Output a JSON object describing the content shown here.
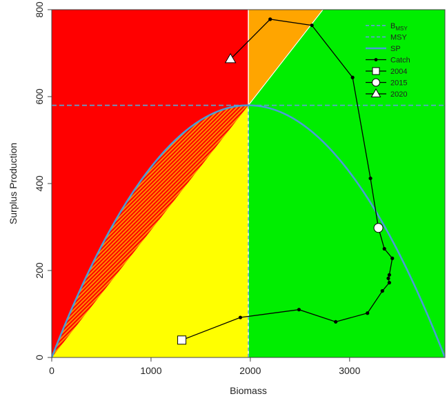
{
  "chart_data": {
    "type": "line",
    "xlabel": "Biomass",
    "ylabel": "Surplus Production",
    "xlim": [
      0,
      3960
    ],
    "ylim": [
      0,
      800
    ],
    "x_ticks": [
      0,
      1000,
      2000,
      3000
    ],
    "y_ticks": [
      0,
      200,
      400,
      600,
      800
    ],
    "y_tick_labels": [
      "0",
      "200",
      "400",
      "600",
      "800"
    ],
    "reference": {
      "BMSY": 1980,
      "MSY": 580,
      "K": 3960
    },
    "regions": {
      "red": "#ff0000",
      "orange": "#ffa500",
      "yellow": "#ffff00",
      "green": "#00ee00",
      "hatch": "#ff6a00"
    },
    "series_colors": {
      "bmsy": "#5ba3d0",
      "msy": "#5ba3d0",
      "sp": "#4a9cd6",
      "catch": "#000000"
    },
    "legend": {
      "position": "top-right",
      "items": [
        {
          "label": "B",
          "sub": "MSY",
          "style": "dashed-line"
        },
        {
          "label": "MSY",
          "style": "dashed-line"
        },
        {
          "label": "SP",
          "style": "solid-line"
        },
        {
          "label": "Catch",
          "style": "line-dot"
        },
        {
          "label": "2004",
          "style": "square"
        },
        {
          "label": "2015",
          "style": "circle"
        },
        {
          "label": "2020",
          "style": "triangle"
        }
      ]
    },
    "catch_series": {
      "name": "Catch",
      "points": [
        {
          "x": 1310,
          "y": 40
        },
        {
          "x": 1900,
          "y": 92
        },
        {
          "x": 2490,
          "y": 110
        },
        {
          "x": 2860,
          "y": 82
        },
        {
          "x": 3180,
          "y": 102
        },
        {
          "x": 3330,
          "y": 153
        },
        {
          "x": 3400,
          "y": 172
        },
        {
          "x": 3390,
          "y": 182
        },
        {
          "x": 3400,
          "y": 190
        },
        {
          "x": 3430,
          "y": 228
        },
        {
          "x": 3350,
          "y": 250
        },
        {
          "x": 3290,
          "y": 298
        },
        {
          "x": 3210,
          "y": 412
        },
        {
          "x": 3030,
          "y": 644
        },
        {
          "x": 2620,
          "y": 764
        },
        {
          "x": 2200,
          "y": 778
        },
        {
          "x": 1800,
          "y": 686
        }
      ]
    },
    "year_markers": [
      {
        "label": "2004",
        "shape": "square",
        "x": 1310,
        "y": 40
      },
      {
        "label": "2015",
        "shape": "circle",
        "x": 3290,
        "y": 298
      },
      {
        "label": "2020",
        "shape": "triangle",
        "x": 1800,
        "y": 686
      }
    ]
  }
}
